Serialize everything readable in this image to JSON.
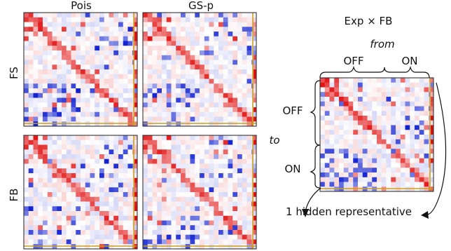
{
  "columns": [
    "Pois",
    "GS-p"
  ],
  "rows": [
    "FS",
    "FB"
  ],
  "right_panel": {
    "title": "Exp × FB",
    "from_label": "from",
    "to_label": "to",
    "off_label": "OFF",
    "on_label": "ON",
    "hidden_label": "1 hidden representative"
  },
  "colors": {
    "positive": "#e01010",
    "negative": "#1020d0",
    "frame": "#222222",
    "hidden_line": "#c8a020"
  }
}
